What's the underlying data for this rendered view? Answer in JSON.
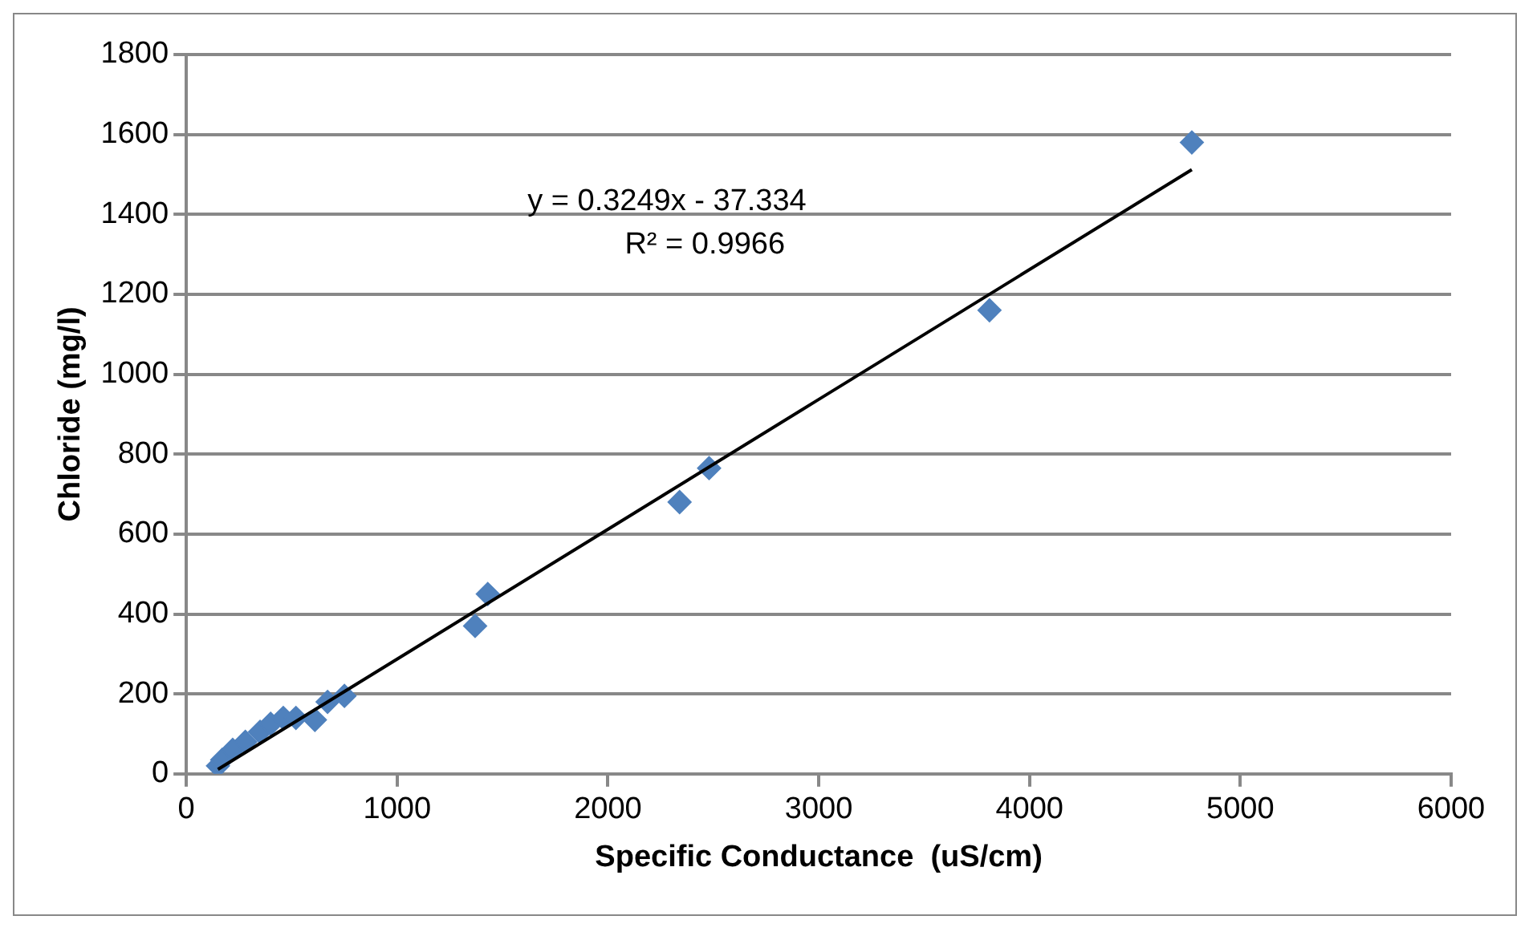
{
  "chart_data": {
    "type": "scatter",
    "xlabel": "Specific Conductance  (uS/cm)",
    "ylabel": "Chloride (mg/l)",
    "annotations": [
      "y = 0.3249x - 37.334",
      "R² = 0.9966"
    ],
    "series": [
      {
        "color": "#4f81bd",
        "marker": "diamond",
        "x": [
          150,
          170,
          220,
          280,
          350,
          400,
          460,
          520,
          610,
          670,
          750,
          1370,
          1430,
          2340,
          2480,
          3810,
          4770
        ],
        "values": [
          20,
          35,
          60,
          80,
          105,
          125,
          140,
          140,
          135,
          180,
          195,
          370,
          450,
          680,
          765,
          1160,
          1580
        ]
      },
      {
        "type": "line",
        "color": "#000000",
        "x": [
          150,
          4770
        ],
        "values": [
          11,
          1512
        ]
      }
    ],
    "xlim": [
      0,
      6000
    ],
    "xticks": [
      0,
      1000,
      2000,
      3000,
      4000,
      5000,
      6000
    ],
    "ylim": [
      0,
      1800
    ],
    "yticks": [
      0,
      200,
      400,
      600,
      800,
      1000,
      1200,
      1400,
      1600,
      1800
    ],
    "grid": "y",
    "legend": false
  }
}
